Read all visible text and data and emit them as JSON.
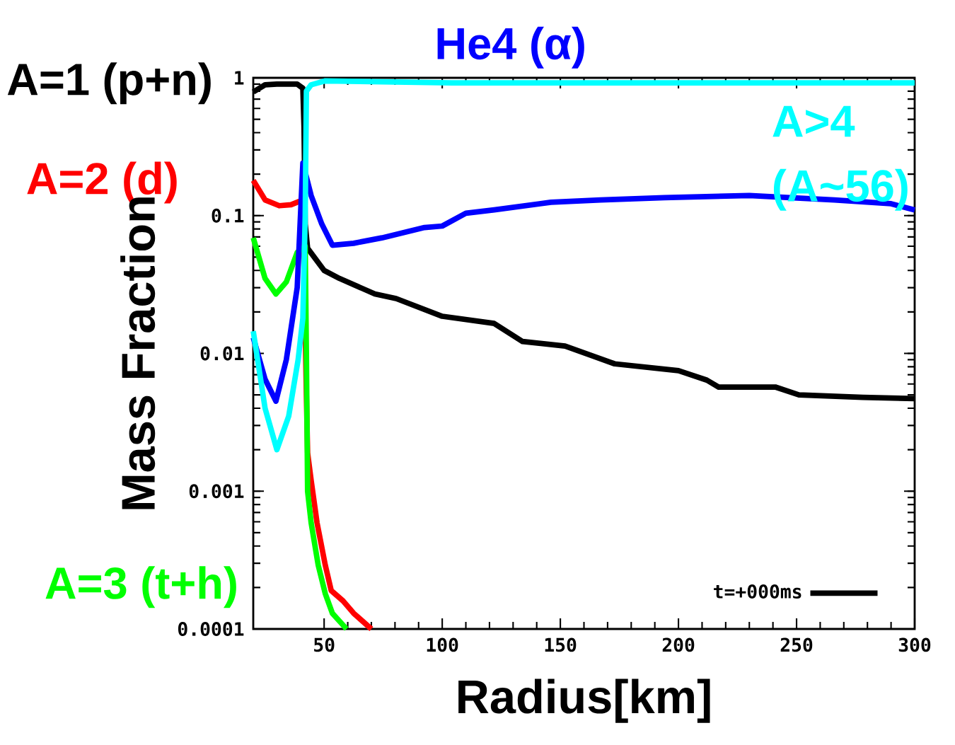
{
  "chart_data": {
    "type": "line",
    "xlabel": "Radius[km]",
    "ylabel": "Mass Fraction",
    "log": "y",
    "xlim": [
      20,
      300
    ],
    "ylim": [
      0.0001,
      1
    ],
    "xticks": [
      50,
      100,
      150,
      200,
      250,
      300
    ],
    "yticks": [
      0.0001,
      0.001,
      0.01,
      0.1,
      1
    ],
    "grid": false,
    "legend": "bottom right",
    "marker": "none",
    "line_style": "solid",
    "annotations": [
      "A=1 (p+n)",
      "A=2 (d)",
      "A=3 (t+h)",
      "He4 (α)",
      "A>4 (A~56)"
    ],
    "series": [
      {
        "name": "t=+000ms",
        "color": "#000000",
        "x": [
          20,
          25,
          30,
          38.6,
          41,
          41.5,
          42,
          43,
          50,
          56.5,
          71.5,
          80.5,
          100,
          122,
          134,
          152,
          173,
          200,
          212,
          217,
          241,
          251,
          278,
          300
        ],
        "values": [
          0.79,
          0.89,
          0.9,
          0.9,
          0.84,
          0.44,
          0.087,
          0.058,
          0.04,
          0.035,
          0.027,
          0.025,
          0.0186,
          0.0165,
          0.0122,
          0.0113,
          0.0084,
          0.0075,
          0.0064,
          0.0057,
          0.0057,
          0.005,
          0.0048,
          0.0047
        ]
      },
      {
        "color": "#ff0000",
        "x": [
          20,
          25,
          31,
          36,
          41,
          42,
          42.5,
          43,
          44.5,
          47,
          50.5,
          53,
          58,
          62.5,
          70
        ],
        "values": [
          0.18,
          0.13,
          0.118,
          0.12,
          0.13,
          null,
          0.005,
          0.0019,
          0.0012,
          0.00059,
          0.00029,
          0.00019,
          0.00016,
          0.00013,
          0.0001
        ]
      },
      {
        "color": "#00ff00",
        "x": [
          20,
          25,
          29.6,
          34,
          38.6,
          42,
          42.5,
          43,
          44.5,
          47.5,
          50.5,
          53.5,
          59.5
        ],
        "values": [
          0.069,
          0.035,
          0.027,
          0.033,
          0.054,
          0.06,
          0.01,
          0.001,
          0.00059,
          0.00029,
          0.00018,
          0.00013,
          0.0001
        ]
      },
      {
        "color": "#0000ff",
        "x": [
          20,
          25,
          29.6,
          34,
          38.6,
          41,
          44.5,
          49,
          53.5,
          62.5,
          74.5,
          92.5,
          100,
          110,
          122,
          146,
          167,
          194,
          230,
          266,
          290,
          300
        ],
        "values": [
          0.013,
          0.0065,
          0.0045,
          0.009,
          0.03,
          0.24,
          0.14,
          0.087,
          0.061,
          0.063,
          0.069,
          0.082,
          0.084,
          0.104,
          0.11,
          0.125,
          0.13,
          0.135,
          0.14,
          0.13,
          0.122,
          0.11
        ]
      },
      {
        "color": "#00ffff",
        "x": [
          20,
          25,
          30,
          35,
          39,
          41,
          42,
          42.5,
          44.5,
          50.5,
          104,
          300
        ],
        "values": [
          0.0145,
          0.004,
          0.002,
          0.0035,
          0.009,
          0.018,
          0.1,
          0.8,
          0.89,
          0.95,
          0.92,
          0.92
        ]
      }
    ]
  }
}
